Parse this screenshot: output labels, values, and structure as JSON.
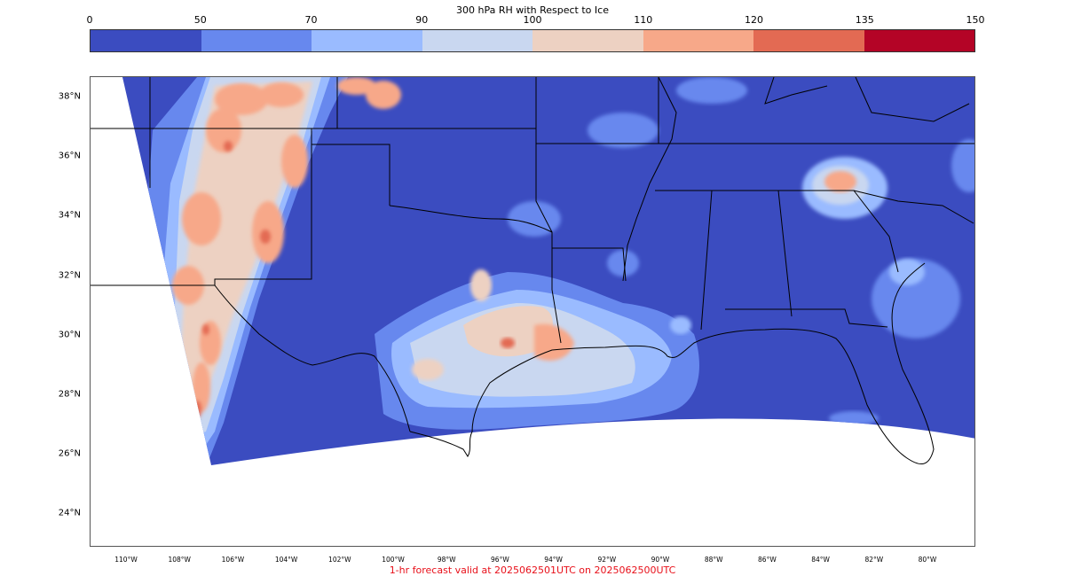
{
  "colorbar": {
    "title": "300 hPa RH with Respect to Ice",
    "ticks": [
      "0",
      "50",
      "70",
      "90",
      "100",
      "110",
      "120",
      "135",
      "150"
    ],
    "colors": [
      "#3b4cc0",
      "#6788ee",
      "#9abbff",
      "#c9d7f0",
      "#edd1c2",
      "#f7a889",
      "#e36a53",
      "#b40426"
    ]
  },
  "lat_labels": [
    "38°N",
    "36°N",
    "34°N",
    "32°N",
    "30°N",
    "28°N",
    "26°N",
    "24°N"
  ],
  "lon_labels": [
    "110°W",
    "108°W",
    "106°W",
    "104°W",
    "102°W",
    "100°W",
    "98°W",
    "96°W",
    "94°W",
    "92°W",
    "90°W",
    "88°W",
    "86°W",
    "84°W",
    "82°W",
    "80°W"
  ],
  "valid_text": "1-hr forecast valid at 2025062501UTC on 2025062500UTC",
  "colors": {
    "ocean_low": "#3b4cc0",
    "boundary": "#000000",
    "valid_text": "#e8101a"
  }
}
